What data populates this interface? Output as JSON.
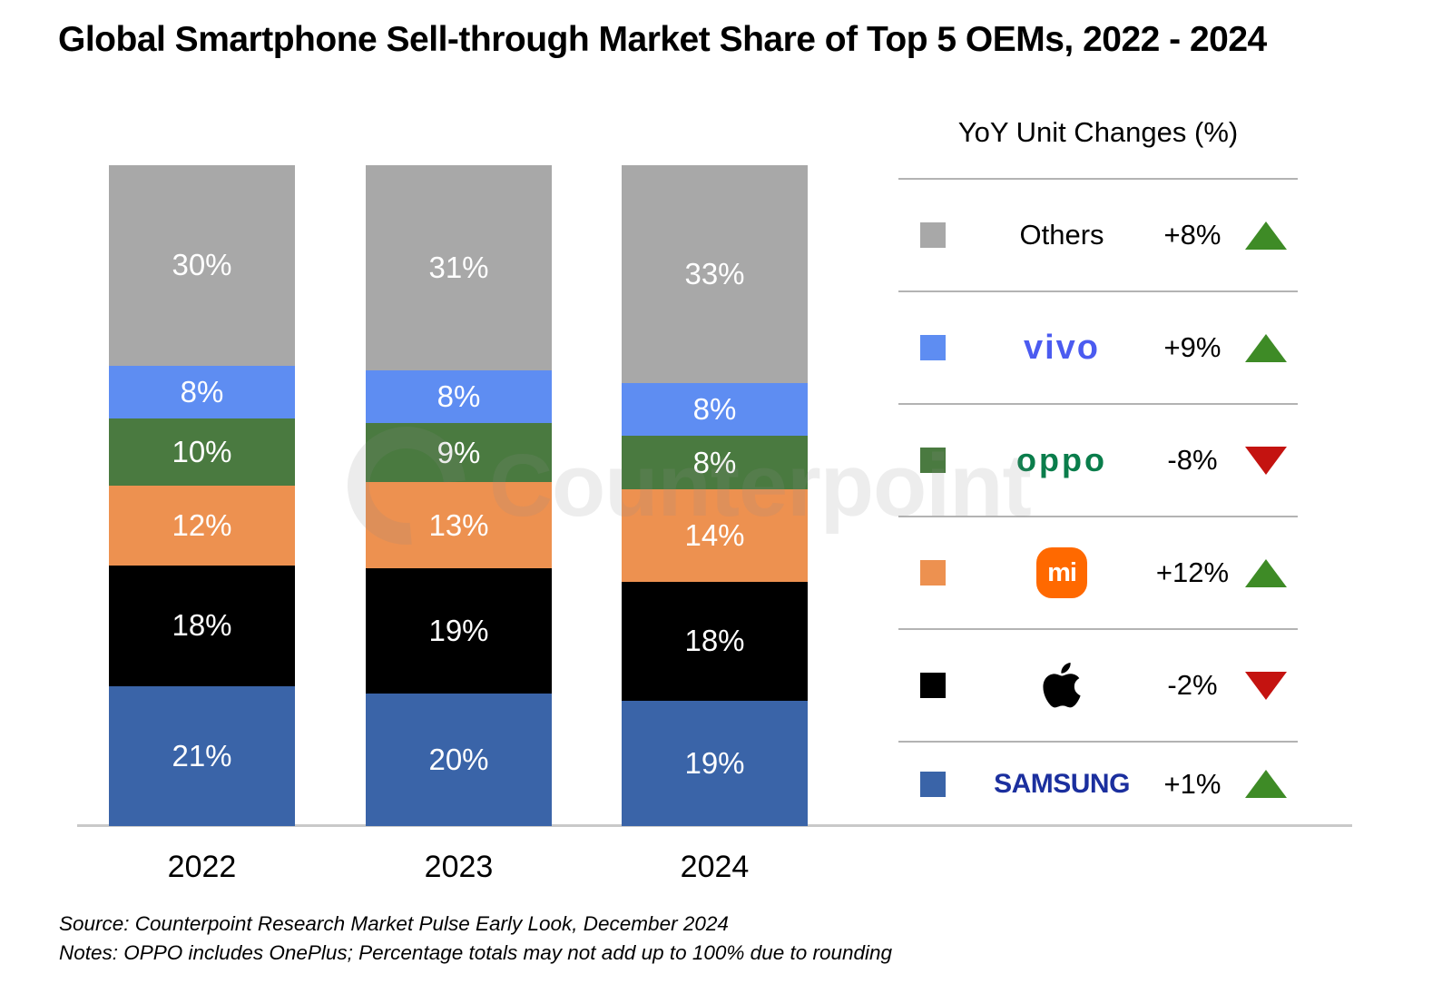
{
  "title": "Global Smartphone Sell-through Market Share of Top 5 OEMs, 2022 - 2024",
  "watermark": "Counterpoint",
  "chart_data": {
    "type": "bar",
    "stacked": true,
    "title": "Global Smartphone Sell-through Market Share of Top 5 OEMs, 2022 - 2024",
    "categories": [
      "2022",
      "2023",
      "2024"
    ],
    "unit": "%",
    "series": [
      {
        "name": "Others",
        "color": "#a8a8a8",
        "values": [
          30,
          31,
          33
        ]
      },
      {
        "name": "vivo",
        "color": "#5e8df2",
        "values": [
          8,
          8,
          8
        ]
      },
      {
        "name": "OPPO",
        "color": "#4a7a40",
        "values": [
          10,
          9,
          8
        ]
      },
      {
        "name": "Xiaomi",
        "color": "#ed9150",
        "values": [
          12,
          13,
          14
        ]
      },
      {
        "name": "Apple",
        "color": "#000000",
        "values": [
          18,
          19,
          18
        ]
      },
      {
        "name": "Samsung",
        "color": "#3a64a8",
        "values": [
          21,
          20,
          19
        ]
      }
    ],
    "legend_position": "right",
    "grid": false
  },
  "legend": {
    "title": "YoY Unit Changes (%)",
    "rows": [
      {
        "brand": "Others",
        "logo_style": "plain",
        "logo_text": "Others",
        "logo_color": "#000000",
        "swatch": "#a8a8a8",
        "change": "+8%",
        "direction": "up"
      },
      {
        "brand": "vivo",
        "logo_style": "vivo",
        "logo_text": "vivo",
        "logo_color": "#4b5bf0",
        "swatch": "#5e8df2",
        "change": "+9%",
        "direction": "up"
      },
      {
        "brand": "OPPO",
        "logo_style": "oppo",
        "logo_text": "oppo",
        "logo_color": "#0a7d4b",
        "swatch": "#4a7a40",
        "change": "-8%",
        "direction": "down"
      },
      {
        "brand": "Xiaomi",
        "logo_style": "mi",
        "logo_text": "mi",
        "logo_color": "#ffffff",
        "logo_bg": "#ff6900",
        "swatch": "#ed9150",
        "change": "+12%",
        "direction": "up"
      },
      {
        "brand": "Apple",
        "logo_style": "apple",
        "logo_text": "",
        "logo_color": "#000000",
        "swatch": "#000000",
        "change": "-2%",
        "direction": "down"
      },
      {
        "brand": "Samsung",
        "logo_style": "samsung",
        "logo_text": "SAMSUNG",
        "logo_color": "#1b2f9e",
        "swatch": "#3a64a8",
        "change": "+1%",
        "direction": "up"
      }
    ]
  },
  "colors": {
    "up": "#3e8b26",
    "down": "#c41310",
    "axis_line": "#c9c9c9"
  },
  "footer": {
    "source": "Source: Counterpoint Research Market Pulse Early Look, December 2024",
    "notes": "Notes: OPPO includes OnePlus; Percentage totals may not add up to 100% due to rounding"
  }
}
